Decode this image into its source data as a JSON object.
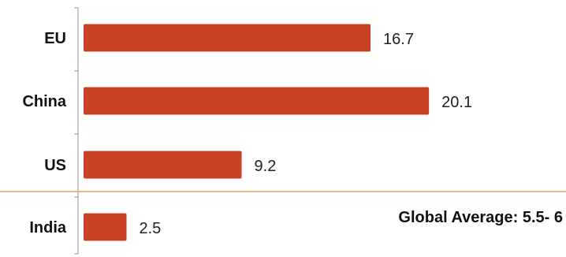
{
  "chart_data": {
    "type": "bar",
    "orientation": "horizontal",
    "categories": [
      "EU",
      "China",
      "US",
      "India"
    ],
    "values": [
      16.7,
      20.1,
      9.2,
      2.5
    ],
    "value_labels": [
      "16.7",
      "20.1",
      "9.2",
      "2.5"
    ],
    "xlim": [
      0,
      24
    ],
    "grid": false,
    "legend": "none",
    "bar_color": "#cc4125",
    "reference_line": {
      "label": "Global Average: 5.5- 6",
      "color": "#e6a25a",
      "placement": "between US and India"
    }
  }
}
